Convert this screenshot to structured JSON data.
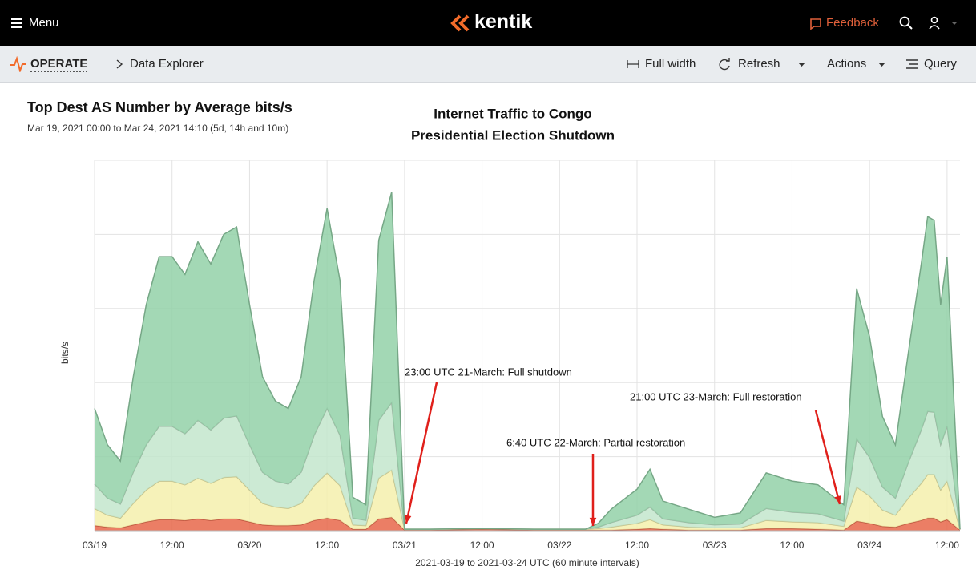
{
  "header": {
    "menu": "Menu",
    "logo": "kentik",
    "feedback": "Feedback"
  },
  "toolbar": {
    "section": "OPERATE",
    "page": "Data Explorer",
    "buttons": [
      "Full width",
      "Refresh",
      "Actions",
      "Query"
    ]
  },
  "panel": {
    "title": "Top Dest AS Number by Average bits/s",
    "subtitle": "Mar 19, 2021 00:00 to Mar 24, 2021 14:10 (5d, 14h and 10m)"
  },
  "chart_data": {
    "type": "stacked_area",
    "title": [
      "Internet Traffic to Congo",
      "Presidential Election Shutdown"
    ],
    "y_label": "bits/s",
    "x_label": "2021-03-19 to 2021-03-24 UTC (60 minute intervals)",
    "annotations": [
      "23:00 UTC 21-March: Full shutdown",
      "6:40 UTC 22-March: Partial restoration",
      "21:00 UTC 23-March: Full restoration"
    ],
    "grid": true,
    "xlim": [
      0,
      134
    ],
    "xticks": [
      {
        "value": 0,
        "label": "03/19"
      },
      {
        "value": 12,
        "label": "12:00"
      },
      {
        "value": 24,
        "label": "03/20"
      },
      {
        "value": 36,
        "label": "12:00"
      },
      {
        "value": 48,
        "label": "03/21"
      },
      {
        "value": 60,
        "label": "12:00"
      },
      {
        "value": 72,
        "label": "03/22"
      },
      {
        "value": 84,
        "label": "12:00"
      },
      {
        "value": 96,
        "label": "03/23"
      },
      {
        "value": 108,
        "label": "12:00"
      },
      {
        "value": 120,
        "label": "03/24"
      },
      {
        "value": 132,
        "label": "12:00"
      }
    ],
    "ylim": [
      0,
      5
    ],
    "yticks": [
      0,
      1,
      2,
      3,
      4,
      5
    ],
    "x": [
      0,
      2,
      4,
      6,
      8,
      10,
      12,
      14,
      16,
      18,
      20,
      22,
      24,
      26,
      28,
      30,
      32,
      34,
      36,
      38,
      40,
      42,
      44,
      46,
      48,
      52,
      60,
      68,
      76,
      78,
      80,
      84,
      86,
      88,
      92,
      96,
      100,
      104,
      108,
      112,
      116,
      118,
      120,
      122,
      124,
      126,
      128,
      129,
      130,
      131,
      132,
      134
    ],
    "series": [
      {
        "color": "#e8674a",
        "values": [
          0.07,
          0.05,
          0.04,
          0.08,
          0.12,
          0.15,
          0.15,
          0.14,
          0.16,
          0.14,
          0.16,
          0.16,
          0.12,
          0.08,
          0.07,
          0.07,
          0.08,
          0.14,
          0.17,
          0.14,
          0.02,
          0.02,
          0.16,
          0.18,
          0.01,
          0.01,
          0.02,
          0.01,
          0.01,
          0.01,
          0.01,
          0.02,
          0.03,
          0.02,
          0.01,
          0.01,
          0.01,
          0.03,
          0.03,
          0.02,
          0.01,
          0.13,
          0.1,
          0.06,
          0.05,
          0.1,
          0.14,
          0.17,
          0.17,
          0.12,
          0.15,
          0.01
        ]
      },
      {
        "color": "#f5f0ad",
        "values": [
          0.23,
          0.16,
          0.13,
          0.29,
          0.43,
          0.52,
          0.52,
          0.48,
          0.55,
          0.5,
          0.56,
          0.57,
          0.43,
          0.29,
          0.25,
          0.23,
          0.29,
          0.47,
          0.61,
          0.47,
          0.06,
          0.05,
          0.55,
          0.64,
          0.01,
          0.01,
          0.01,
          0.01,
          0.01,
          0.02,
          0.04,
          0.08,
          0.12,
          0.06,
          0.04,
          0.03,
          0.03,
          0.11,
          0.09,
          0.09,
          0.05,
          0.46,
          0.37,
          0.22,
          0.16,
          0.34,
          0.5,
          0.59,
          0.59,
          0.43,
          0.52,
          0.01
        ]
      },
      {
        "color": "#c3e6cc",
        "values": [
          0.33,
          0.23,
          0.19,
          0.42,
          0.61,
          0.74,
          0.74,
          0.69,
          0.78,
          0.72,
          0.8,
          0.82,
          0.61,
          0.42,
          0.35,
          0.33,
          0.42,
          0.68,
          0.87,
          0.68,
          0.09,
          0.07,
          0.78,
          0.91,
          0,
          0,
          0,
          0,
          0,
          0.02,
          0.06,
          0.11,
          0.17,
          0.08,
          0.06,
          0.04,
          0.05,
          0.16,
          0.13,
          0.12,
          0.07,
          0.65,
          0.52,
          0.31,
          0.23,
          0.48,
          0.72,
          0.85,
          0.84,
          0.61,
          0.74,
          0
        ]
      },
      {
        "color": "#93d1a8",
        "values": [
          1.02,
          0.72,
          0.58,
          1.29,
          1.89,
          2.29,
          2.29,
          2.15,
          2.41,
          2.24,
          2.48,
          2.55,
          1.89,
          1.29,
          1.08,
          1.02,
          1.29,
          2.09,
          2.7,
          2.09,
          0.28,
          0.21,
          2.43,
          2.84,
          0,
          0,
          0,
          0,
          0,
          0.05,
          0.18,
          0.35,
          0.51,
          0.24,
          0.18,
          0.1,
          0.15,
          0.48,
          0.42,
          0.39,
          0.22,
          2.03,
          1.63,
          0.95,
          0.72,
          1.48,
          2.24,
          2.63,
          2.59,
          1.89,
          2.29,
          0
        ]
      }
    ]
  }
}
